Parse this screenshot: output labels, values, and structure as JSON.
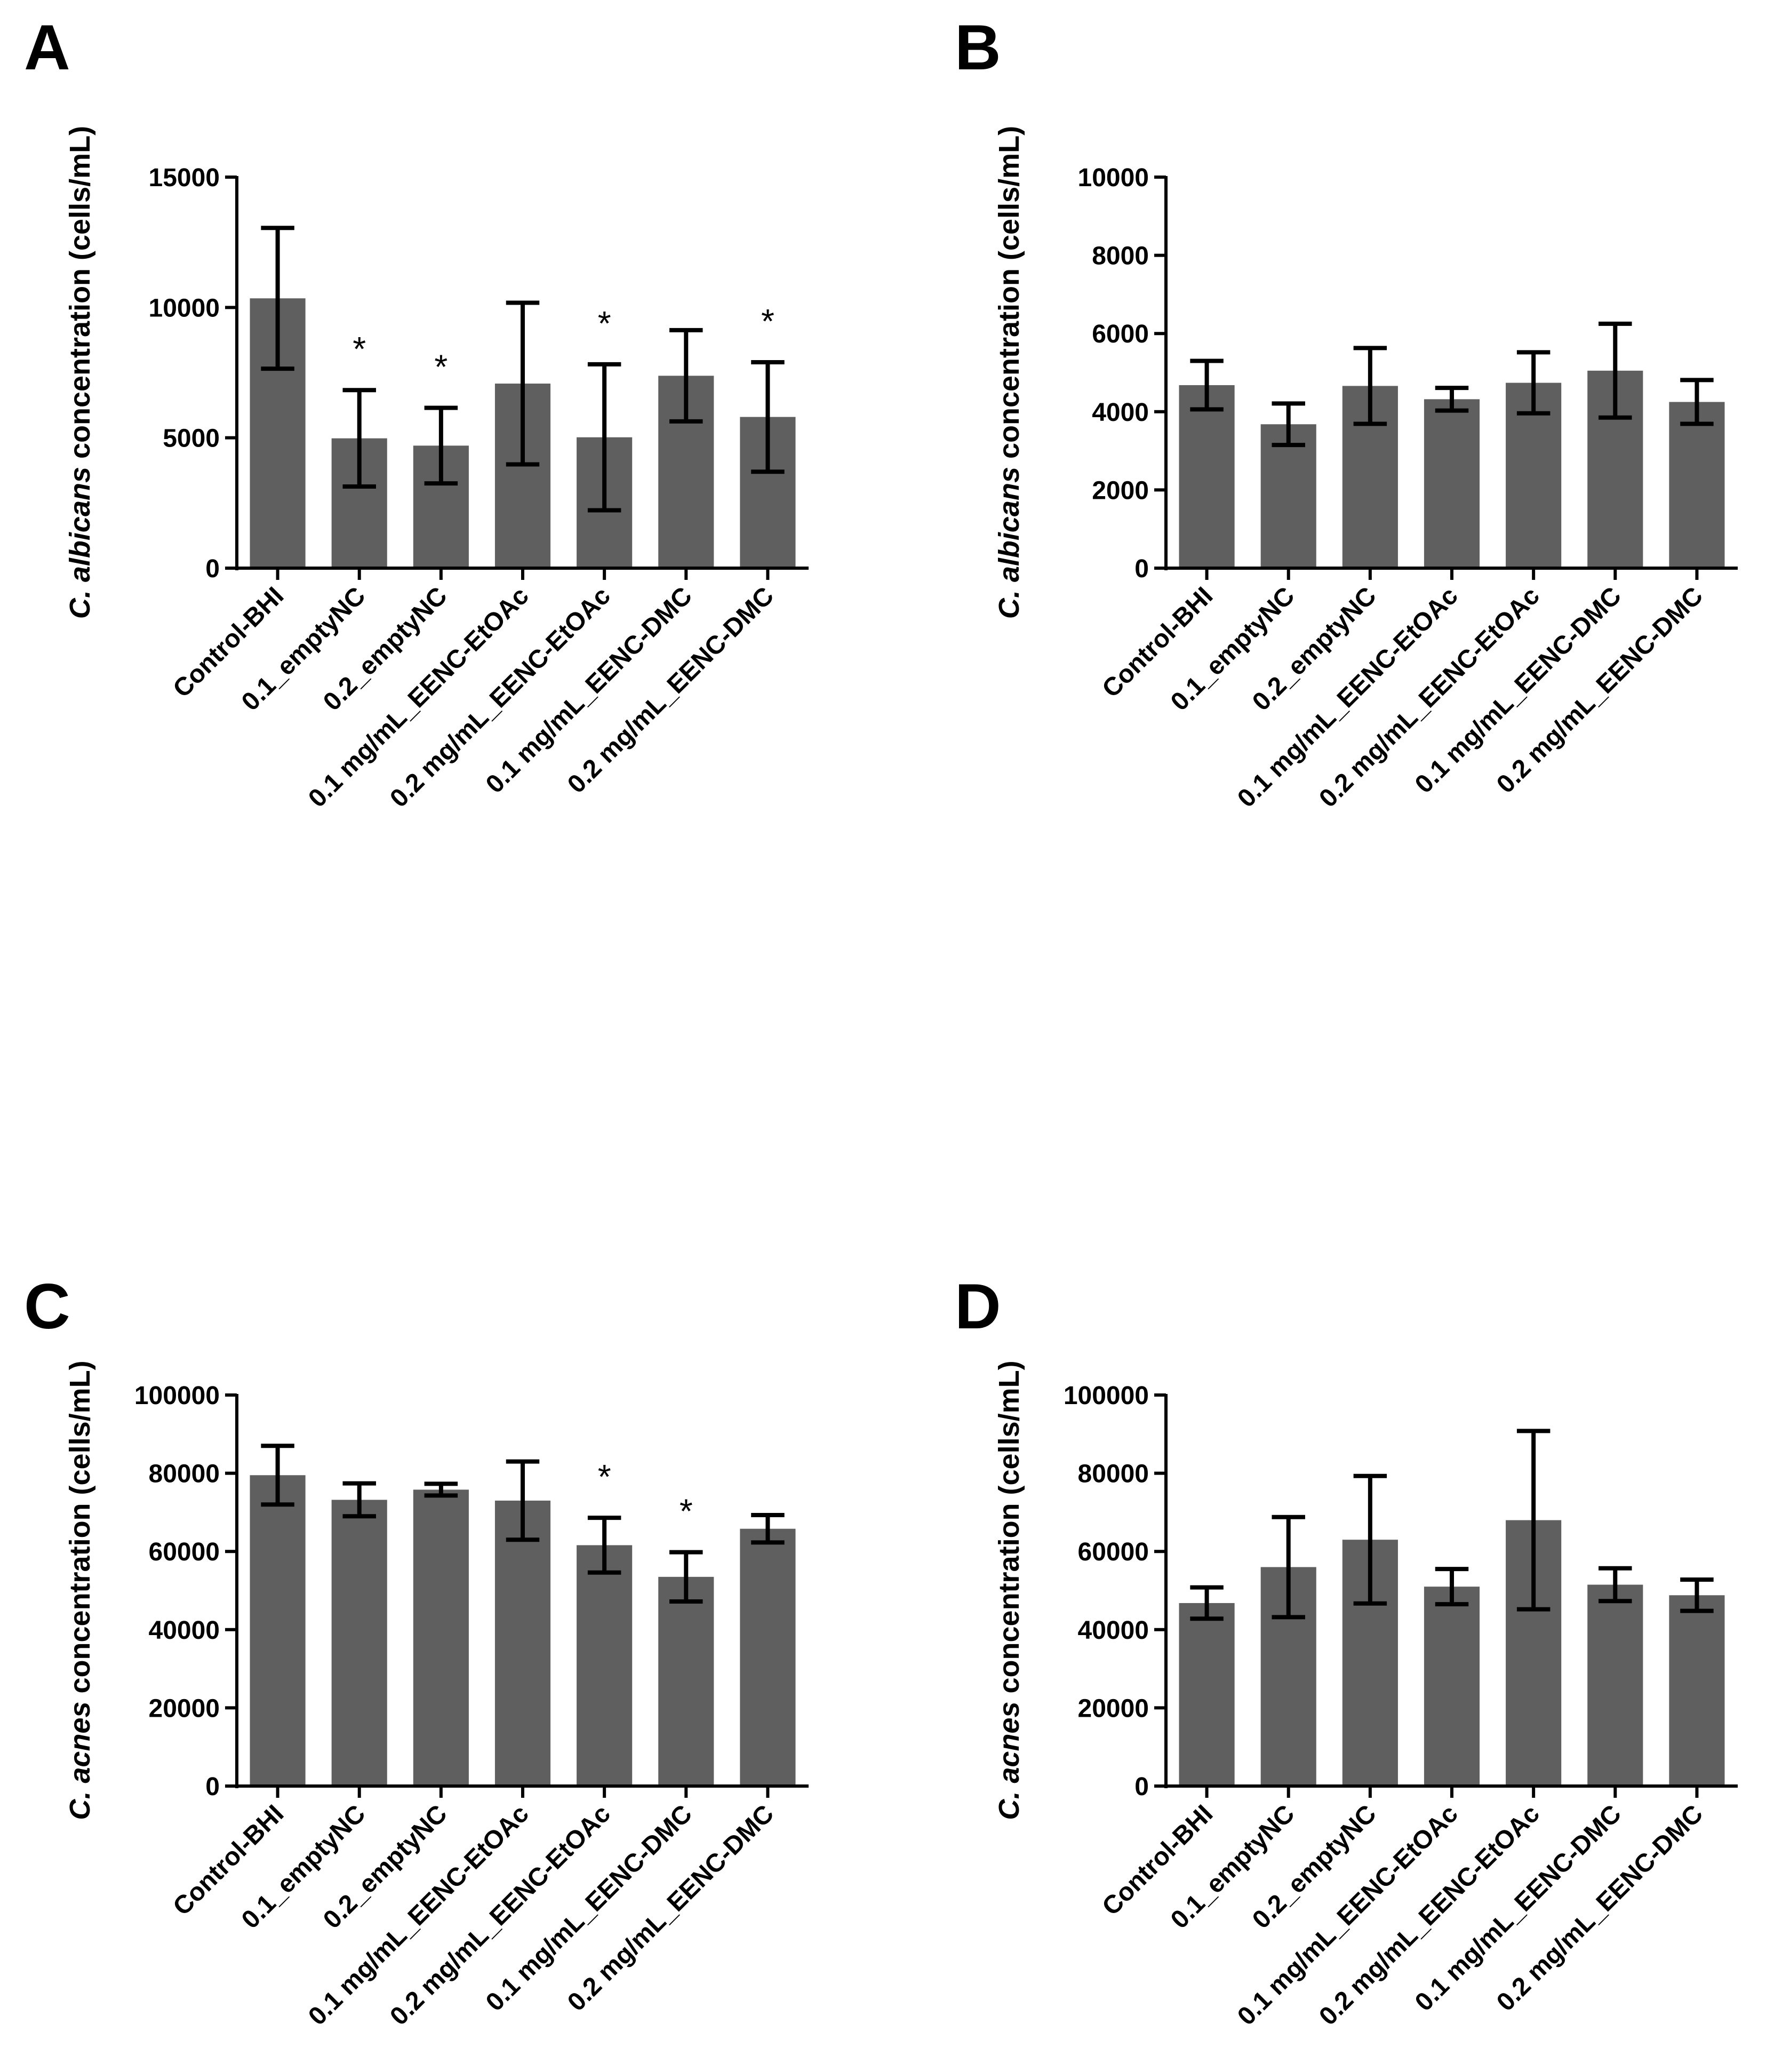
{
  "chart_data": [
    {
      "panel": "A",
      "type": "bar",
      "ylabel_species": "C. albicans",
      "ylabel_suffix": " concentration (cells/mL)",
      "categories": [
        "Control-BHI",
        "0.1_emptyNC",
        "0.2_emptyNC",
        "0.1 mg/mL_EENC-EtOAc",
        "0.2 mg/mL_EENC-EtOAc",
        "0.1 mg/mL_EENC-DMC",
        "0.2 mg/mL_EENC-DMC"
      ],
      "values": [
        10350,
        4980,
        4700,
        7080,
        5020,
        7380,
        5800
      ],
      "errors": [
        2700,
        1850,
        1450,
        3100,
        2800,
        1750,
        2100
      ],
      "significance": [
        "",
        "*",
        "*",
        "",
        "*",
        "",
        "*"
      ],
      "ylim": [
        0,
        15000
      ],
      "yticks": [
        0,
        5000,
        10000,
        15000
      ],
      "ytick_labels": [
        "0",
        "5000",
        "10000",
        "15000"
      ]
    },
    {
      "panel": "B",
      "type": "bar",
      "ylabel_species": "C. albicans",
      "ylabel_suffix": " concentration (cells/mL)",
      "categories": [
        "Control-BHI",
        "0.1_emptyNC",
        "0.2_emptyNC",
        "0.1 mg/mL_EENC-EtOAc",
        "0.2 mg/mL_EENC-EtOAc",
        "0.1 mg/mL_EENC-DMC",
        "0.2 mg/mL_EENC-DMC"
      ],
      "values": [
        4680,
        3680,
        4660,
        4320,
        4740,
        5050,
        4250
      ],
      "errors": [
        620,
        530,
        970,
        290,
        780,
        1200,
        560
      ],
      "significance": [
        "",
        "",
        "",
        "",
        "",
        "",
        ""
      ],
      "ylim": [
        0,
        10000
      ],
      "yticks": [
        0,
        2000,
        4000,
        6000,
        8000,
        10000
      ],
      "ytick_labels": [
        "0",
        "2000",
        "4000",
        "6000",
        "8000",
        "10000"
      ]
    },
    {
      "panel": "C",
      "type": "bar",
      "ylabel_species": "C. acnes",
      "ylabel_suffix": " concentration (cells/mL)",
      "categories": [
        "Control-BHI",
        "0.1_emptyNC",
        "0.2_emptyNC",
        "0.1 mg/mL_EENC-EtOAc",
        "0.2 mg/mL_EENC-EtOAc",
        "0.1 mg/mL_EENC-DMC",
        "0.2 mg/mL_EENC-DMC"
      ],
      "values": [
        79500,
        73200,
        75800,
        73000,
        61600,
        53500,
        65800
      ],
      "errors": [
        7500,
        4200,
        1500,
        10000,
        7000,
        6300,
        3500
      ],
      "significance": [
        "",
        "",
        "",
        "",
        "*",
        "*",
        ""
      ],
      "ylim": [
        0,
        100000
      ],
      "yticks": [
        0,
        20000,
        40000,
        60000,
        80000,
        100000
      ],
      "ytick_labels": [
        "0",
        "20000",
        "40000",
        "60000",
        "80000",
        "100000"
      ]
    },
    {
      "panel": "D",
      "type": "bar",
      "ylabel_species": "C. acnes",
      "ylabel_suffix": " concentration (cells/mL)",
      "categories": [
        "Control-BHI",
        "0.1_emptyNC",
        "0.2_emptyNC",
        "0.1 mg/mL_EENC-EtOAc",
        "0.2 mg/mL_EENC-EtOAc",
        "0.1 mg/mL_EENC-DMC",
        "0.2 mg/mL_EENC-DMC"
      ],
      "values": [
        46800,
        56000,
        63000,
        51000,
        68000,
        51500,
        48800
      ],
      "errors": [
        4000,
        12800,
        16300,
        4500,
        22800,
        4200,
        4000
      ],
      "significance": [
        "",
        "",
        "",
        "",
        "",
        "",
        ""
      ],
      "ylim": [
        0,
        100000
      ],
      "yticks": [
        0,
        20000,
        40000,
        60000,
        80000,
        100000
      ],
      "ytick_labels": [
        "0",
        "20000",
        "40000",
        "60000",
        "80000",
        "100000"
      ]
    }
  ],
  "colors": {
    "bar": "#5f5f5f",
    "axis": "#000000",
    "error_bar": "#000000"
  }
}
